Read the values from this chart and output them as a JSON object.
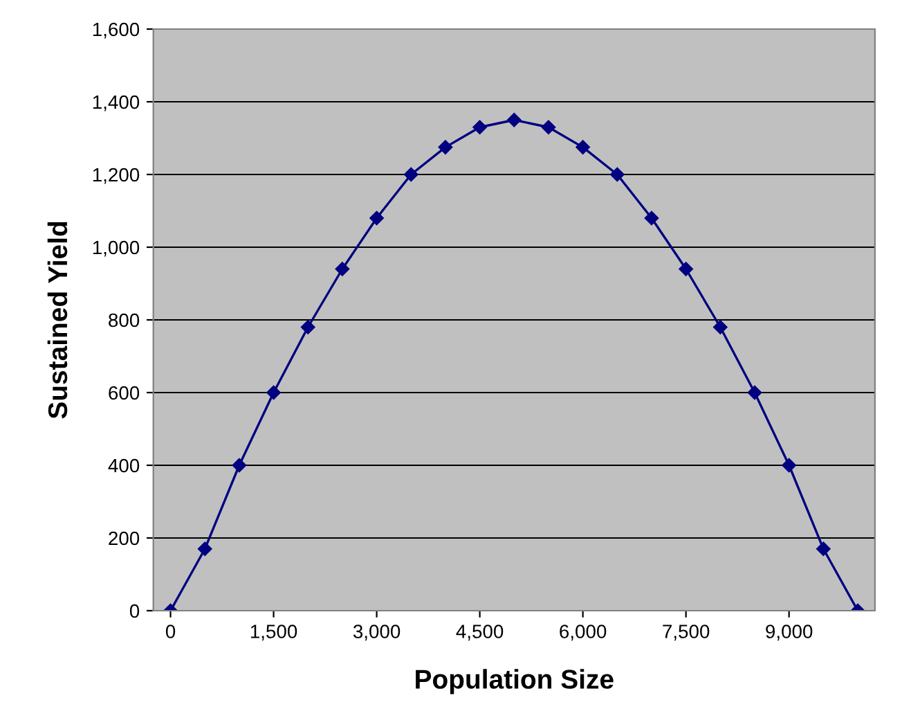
{
  "chart_data": {
    "type": "line",
    "xlabel": "Population Size",
    "ylabel": "Sustained Yield",
    "x": [
      0,
      500,
      1000,
      1500,
      2000,
      2500,
      3000,
      3500,
      4000,
      4500,
      5000,
      5500,
      6000,
      6500,
      7000,
      7500,
      8000,
      8500,
      9000,
      9500,
      10000
    ],
    "series": [
      {
        "color": "#000080",
        "values": [
          0,
          170,
          400,
          600,
          780,
          940,
          1080,
          1200,
          1275,
          1330,
          1350,
          1330,
          1275,
          1200,
          1080,
          940,
          780,
          600,
          400,
          170,
          0
        ]
      }
    ],
    "xlim": [
      -250,
      10250
    ],
    "xticks": [
      {
        "value": 0,
        "label": "0"
      },
      {
        "value": 1500,
        "label": "1,500"
      },
      {
        "value": 3000,
        "label": "3,000"
      },
      {
        "value": 4500,
        "label": "4,500"
      },
      {
        "value": 6000,
        "label": "6,000"
      },
      {
        "value": 7500,
        "label": "7,500"
      },
      {
        "value": 9000,
        "label": "9,000"
      }
    ],
    "ylim": [
      0,
      1600
    ],
    "yticks": [
      {
        "value": 0,
        "label": "0"
      },
      {
        "value": 200,
        "label": "200"
      },
      {
        "value": 400,
        "label": "400"
      },
      {
        "value": 600,
        "label": "600"
      },
      {
        "value": 800,
        "label": "800"
      },
      {
        "value": 1000,
        "label": "1,000"
      },
      {
        "value": 1200,
        "label": "1,200"
      },
      {
        "value": 1400,
        "label": "1,400"
      },
      {
        "value": 1600,
        "label": "1,600"
      }
    ],
    "grid": "y",
    "marker": "diamond",
    "line_style": "solid"
  }
}
